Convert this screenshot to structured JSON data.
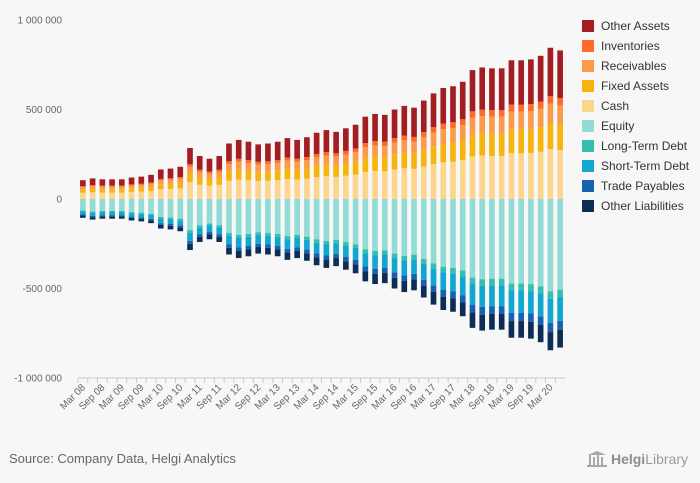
{
  "chart_data": {
    "type": "bar",
    "stacked": true,
    "categories": [
      "Mar 08",
      "Jun 08",
      "Sep 08",
      "Dec 08",
      "Mar 09",
      "Jun 09",
      "Sep 09",
      "Dec 09",
      "Mar 10",
      "Jun 10",
      "Sep 10",
      "Dec 10",
      "Mar 11",
      "Jun 11",
      "Sep 11",
      "Dec 11",
      "Mar 12",
      "Jun 12",
      "Sep 12",
      "Dec 12",
      "Mar 13",
      "Jun 13",
      "Sep 13",
      "Dec 13",
      "Mar 14",
      "Jun 14",
      "Sep 14",
      "Dec 14",
      "Mar 15",
      "Jun 15",
      "Sep 15",
      "Dec 15",
      "Mar 16",
      "Jun 16",
      "Sep 16",
      "Dec 16",
      "Mar 17",
      "Jun 17",
      "Sep 17",
      "Dec 17",
      "Mar 18",
      "Jun 18",
      "Sep 18",
      "Dec 18",
      "Mar 19",
      "Jun 19",
      "Sep 19",
      "Dec 19",
      "Mar 20",
      "Jun 20"
    ],
    "x_tick_labels": [
      "Mar 08",
      "Sep 08",
      "Mar 09",
      "Sep 09",
      "Mar 10",
      "Sep 10",
      "Mar 11",
      "Sep 11",
      "Mar 12",
      "Sep 12",
      "Mar 13",
      "Sep 13",
      "Mar 14",
      "Sep 14",
      "Mar 15",
      "Sep 15",
      "Mar 16",
      "Sep 16",
      "Mar 17",
      "Sep 17",
      "Mar 18",
      "Sep 18",
      "Mar 19",
      "Sep 19",
      "Mar 20"
    ],
    "ylim": [
      -1000000,
      1000000
    ],
    "y_ticks": [
      1000000,
      500000,
      0,
      -500000,
      -1000000
    ],
    "y_tick_labels": [
      "1 000 000",
      "500 000",
      "0",
      "-500 000",
      "-1 000 000"
    ],
    "asset_totals": [
      105000,
      115000,
      110000,
      110000,
      110000,
      120000,
      125000,
      135000,
      165000,
      170000,
      180000,
      285000,
      240000,
      225000,
      240000,
      310000,
      330000,
      320000,
      305000,
      310000,
      320000,
      340000,
      330000,
      345000,
      370000,
      385000,
      375000,
      395000,
      415000,
      460000,
      475000,
      470000,
      500000,
      520000,
      510000,
      550000,
      590000,
      620000,
      630000,
      655000,
      720000,
      735000,
      730000,
      730000,
      775000,
      775000,
      780000,
      800000,
      845000,
      830000
    ],
    "asset_shares": {
      "Other Assets": 0.32,
      "Inventories": 0.05,
      "Receivables": 0.13,
      "Fixed Assets": 0.17,
      "Cash": 0.33
    },
    "liability_shares": {
      "Equity": 0.61,
      "Long-Term Debt": 0.05,
      "Short-Term Debt": 0.16,
      "Trade Payables": 0.06,
      "Other Liabilities": 0.12
    },
    "series": [
      {
        "name": "Other Assets",
        "side": "asset",
        "color": "#a31e22"
      },
      {
        "name": "Inventories",
        "side": "asset",
        "color": "#ff6a2a"
      },
      {
        "name": "Receivables",
        "side": "asset",
        "color": "#f99b4a"
      },
      {
        "name": "Fixed Assets",
        "side": "asset",
        "color": "#f6b40e"
      },
      {
        "name": "Cash",
        "side": "asset",
        "color": "#fdd58d"
      },
      {
        "name": "Equity",
        "side": "liability",
        "color": "#93dcd5"
      },
      {
        "name": "Long-Term Debt",
        "side": "liability",
        "color": "#34bfae"
      },
      {
        "name": "Short-Term Debt",
        "side": "liability",
        "color": "#11a8cf"
      },
      {
        "name": "Trade Payables",
        "side": "liability",
        "color": "#1861b2"
      },
      {
        "name": "Other Liabilities",
        "side": "liability",
        "color": "#0d2d55"
      }
    ],
    "legend_position": "right",
    "grid": false
  },
  "source_text": "Source: Company Data, Helgi Analytics",
  "brand": {
    "name_bold": "Helgi",
    "name_regular": "Library"
  }
}
